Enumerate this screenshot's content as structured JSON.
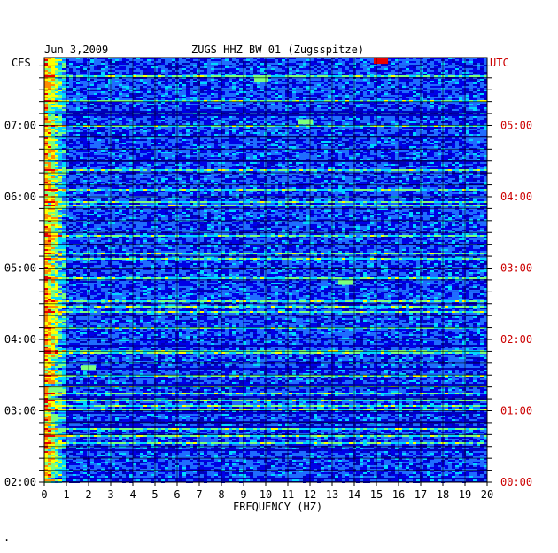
{
  "header": {
    "date": "Jun 3,2009",
    "station": "ZUGS HHZ BW 01 (Zugsspitze)"
  },
  "chart_data": {
    "type": "heatmap",
    "title": "ZUGS HHZ BW 01 (Zugsspitze)",
    "date": "Jun 3,2009",
    "xlabel": "FREQUENCY (HZ)",
    "xlim": [
      0,
      20
    ],
    "x_ticks": [
      "0",
      "1",
      "2",
      "3",
      "4",
      "5",
      "6",
      "7",
      "8",
      "9",
      "10",
      "11",
      "12",
      "13",
      "14",
      "15",
      "16",
      "17",
      "18",
      "19",
      "20"
    ],
    "left_axis": {
      "label": "CES",
      "ticks": [
        "02:00",
        "03:00",
        "04:00",
        "05:00",
        "06:00",
        "07:00"
      ],
      "values_hours": [
        2,
        3,
        4,
        5,
        6,
        7
      ]
    },
    "right_axis": {
      "label": "UTC",
      "ticks": [
        "00:00",
        "01:00",
        "02:00",
        "03:00",
        "04:00",
        "05:00"
      ],
      "values_hours": [
        0,
        1,
        2,
        3,
        4,
        5
      ]
    },
    "time_range_ces": [
      2.0,
      7.95
    ],
    "colormap": [
      "#00007a",
      "#0000e6",
      "#1f6cff",
      "#00d7ff",
      "#7cff7c",
      "#ffff00",
      "#ff8c00",
      "#e60000"
    ],
    "low_frequency_band_hz": [
      0,
      1
    ],
    "notable_events": [
      {
        "time_ces": 7.65,
        "freq_hz": 9.8,
        "level": "high"
      },
      {
        "time_ces": 7.9,
        "freq_hz": 15.2,
        "level": "peak"
      },
      {
        "time_ces": 7.05,
        "freq_hz": 11.8,
        "level": "high"
      },
      {
        "time_ces": 4.8,
        "freq_hz": 13.6,
        "level": "high"
      },
      {
        "time_ces": 3.6,
        "freq_hz": 2,
        "level": "high"
      },
      {
        "time_ces": 3.3,
        "freq_hz": 0.5,
        "level": "high"
      }
    ]
  },
  "footer": {
    "mark": "."
  }
}
